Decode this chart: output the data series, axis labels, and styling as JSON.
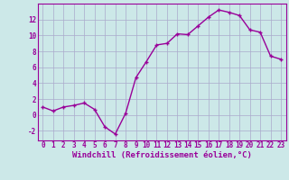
{
  "x": [
    0,
    1,
    2,
    3,
    4,
    5,
    6,
    7,
    8,
    9,
    10,
    11,
    12,
    13,
    14,
    15,
    16,
    17,
    18,
    19,
    20,
    21,
    22,
    23
  ],
  "y": [
    1.0,
    0.5,
    1.0,
    1.2,
    1.5,
    0.7,
    -1.5,
    -2.4,
    0.2,
    4.7,
    6.7,
    8.8,
    9.0,
    10.2,
    10.1,
    11.2,
    12.3,
    13.2,
    12.9,
    12.5,
    10.7,
    10.4,
    7.4,
    7.0
  ],
  "line_color": "#990099",
  "marker": "+",
  "bg_color": "#cce8e8",
  "grid_color": "#aaaacc",
  "xlabel": "Windchill (Refroidissement éolien,°C)",
  "xlim": [
    -0.5,
    23.5
  ],
  "ylim": [
    -3.2,
    14.0
  ],
  "yticks": [
    -2,
    0,
    2,
    4,
    6,
    8,
    10,
    12
  ],
  "xticks": [
    0,
    1,
    2,
    3,
    4,
    5,
    6,
    7,
    8,
    9,
    10,
    11,
    12,
    13,
    14,
    15,
    16,
    17,
    18,
    19,
    20,
    21,
    22,
    23
  ],
  "tick_fontsize": 5.5,
  "xlabel_fontsize": 6.5,
  "line_width": 1.0,
  "marker_size": 3.5,
  "marker_edge_width": 1.0
}
